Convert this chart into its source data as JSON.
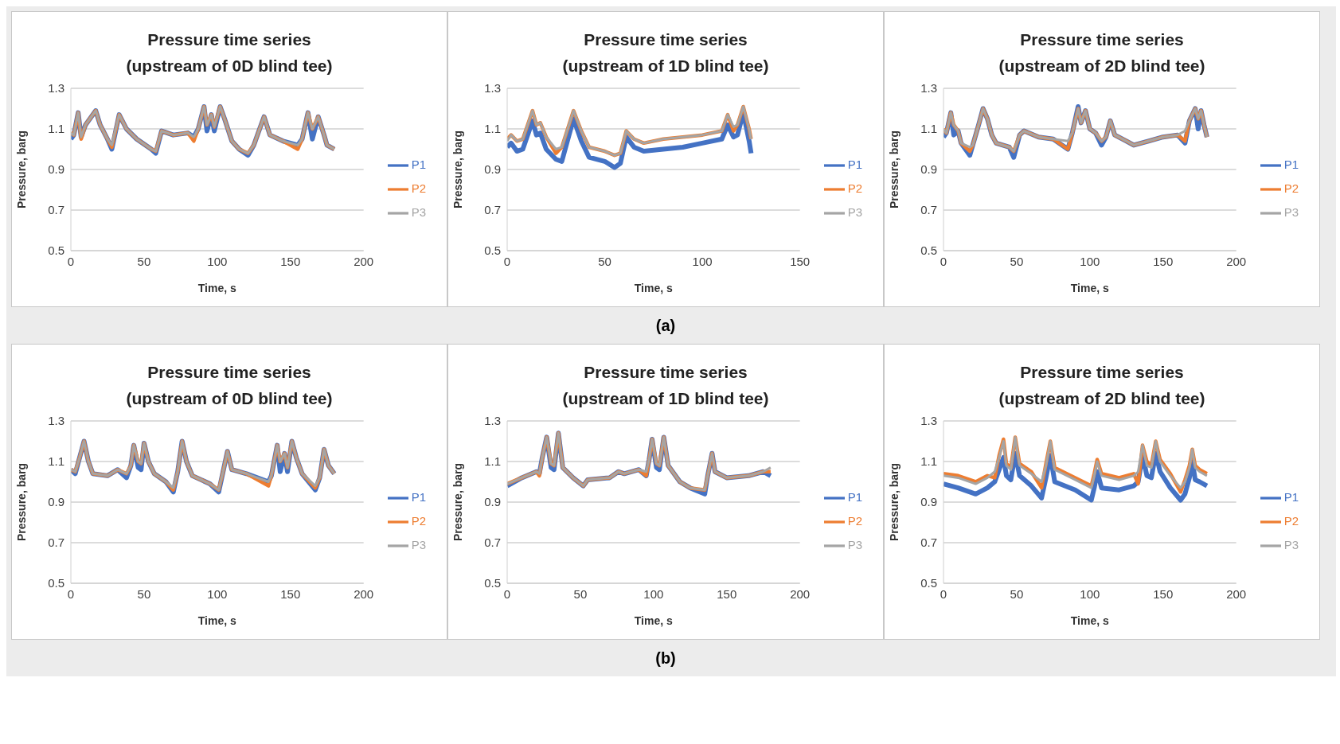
{
  "chart_data": [
    {
      "type": "line",
      "title": "Pressure time series",
      "subtitle": "(upstream of 0D blind tee)",
      "xlabel": "Time, s",
      "ylabel": "Pressure, barg",
      "xlim": [
        0,
        200
      ],
      "xticks": [
        0,
        50,
        100,
        150,
        200
      ],
      "ylim": [
        0.5,
        1.3
      ],
      "yticks": [
        0.5,
        0.7,
        0.9,
        1.1,
        1.3
      ],
      "grid": "y",
      "legend": "right",
      "x": [
        0,
        2,
        5,
        7,
        10,
        17,
        20,
        25,
        28,
        33,
        38,
        45,
        55,
        58,
        62,
        70,
        80,
        84,
        87,
        91,
        93,
        96,
        98,
        102,
        105,
        110,
        115,
        121,
        125,
        128,
        132,
        136,
        145,
        155,
        158,
        162,
        165,
        169,
        173,
        175,
        180
      ],
      "series": [
        {
          "name": "P1",
          "color": "#4472c4",
          "values": [
            1.05,
            1.07,
            1.18,
            1.06,
            1.12,
            1.19,
            1.12,
            1.05,
            1.0,
            1.17,
            1.1,
            1.05,
            1.0,
            0.98,
            1.09,
            1.07,
            1.08,
            1.06,
            1.1,
            1.21,
            1.09,
            1.17,
            1.09,
            1.21,
            1.15,
            1.04,
            1.0,
            0.97,
            1.02,
            1.08,
            1.16,
            1.07,
            1.04,
            1.02,
            1.05,
            1.18,
            1.05,
            1.16,
            1.07,
            1.02,
            1.0
          ]
        },
        {
          "name": "P2",
          "color": "#ed7d31",
          "values": [
            1.08,
            1.07,
            1.18,
            1.05,
            1.12,
            1.19,
            1.12,
            1.05,
            1.01,
            1.17,
            1.1,
            1.05,
            1.0,
            0.99,
            1.09,
            1.07,
            1.08,
            1.04,
            1.1,
            1.21,
            1.12,
            1.17,
            1.11,
            1.21,
            1.15,
            1.04,
            1.0,
            0.98,
            1.02,
            1.08,
            1.16,
            1.07,
            1.04,
            1.0,
            1.05,
            1.18,
            1.1,
            1.16,
            1.07,
            1.02,
            1.0
          ]
        },
        {
          "name": "P3",
          "color": "#a5a5a5",
          "values": [
            1.08,
            1.07,
            1.18,
            1.06,
            1.12,
            1.19,
            1.12,
            1.05,
            1.02,
            1.17,
            1.1,
            1.05,
            1.0,
            0.99,
            1.09,
            1.07,
            1.08,
            1.06,
            1.1,
            1.21,
            1.12,
            1.17,
            1.11,
            1.21,
            1.15,
            1.04,
            1.0,
            0.98,
            1.02,
            1.08,
            1.16,
            1.07,
            1.04,
            1.02,
            1.05,
            1.18,
            1.1,
            1.16,
            1.07,
            1.02,
            1.0
          ]
        }
      ]
    },
    {
      "type": "line",
      "title": "Pressure time series",
      "subtitle": "(upstream of 1D blind tee)",
      "xlabel": "Time, s",
      "ylabel": "Pressure, barg",
      "xlim": [
        0,
        150
      ],
      "xticks": [
        0,
        50,
        100,
        150
      ],
      "ylim": [
        0.5,
        1.3
      ],
      "yticks": [
        0.5,
        0.7,
        0.9,
        1.1,
        1.3
      ],
      "grid": "y",
      "legend": "right",
      "annotations": [
        "(a)"
      ],
      "x": [
        0,
        2,
        5,
        8,
        13,
        15,
        17,
        20,
        25,
        28,
        34,
        38,
        42,
        50,
        55,
        58,
        61,
        65,
        70,
        80,
        90,
        100,
        110,
        113,
        116,
        118,
        121,
        124,
        125
      ],
      "series": [
        {
          "name": "P1",
          "color": "#4472c4",
          "values": [
            1.01,
            1.03,
            0.99,
            1.0,
            1.14,
            1.07,
            1.08,
            1.0,
            0.95,
            0.94,
            1.15,
            1.04,
            0.96,
            0.94,
            0.91,
            0.93,
            1.06,
            1.01,
            0.99,
            1.0,
            1.01,
            1.03,
            1.05,
            1.12,
            1.06,
            1.07,
            1.18,
            1.04,
            0.98
          ]
        },
        {
          "name": "P2",
          "color": "#ed7d31",
          "values": [
            1.05,
            1.07,
            1.04,
            1.05,
            1.19,
            1.12,
            1.13,
            1.06,
            0.98,
            1.01,
            1.19,
            1.09,
            1.01,
            0.99,
            0.97,
            0.98,
            1.09,
            1.05,
            1.03,
            1.05,
            1.06,
            1.07,
            1.09,
            1.17,
            1.09,
            1.12,
            1.21,
            1.1,
            1.05
          ]
        },
        {
          "name": "P3",
          "color": "#a5a5a5",
          "values": [
            1.04,
            1.07,
            1.04,
            1.05,
            1.19,
            1.12,
            1.13,
            1.06,
            1.0,
            1.01,
            1.19,
            1.09,
            1.01,
            0.99,
            0.97,
            0.98,
            1.09,
            1.05,
            1.03,
            1.05,
            1.06,
            1.07,
            1.09,
            1.17,
            1.11,
            1.12,
            1.21,
            1.1,
            1.05
          ]
        }
      ]
    },
    {
      "type": "line",
      "title": "Pressure time series",
      "subtitle": "(upstream of 2D blind tee)",
      "xlabel": "Time, s",
      "ylabel": "Pressure, barg",
      "xlim": [
        0,
        200
      ],
      "xticks": [
        0,
        50,
        100,
        150,
        200
      ],
      "ylim": [
        0.5,
        1.3
      ],
      "yticks": [
        0.5,
        0.7,
        0.9,
        1.1,
        1.3
      ],
      "grid": "y",
      "legend": "right",
      "x": [
        0,
        2,
        5,
        7,
        10,
        12,
        18,
        20,
        24,
        27,
        30,
        33,
        36,
        45,
        48,
        52,
        55,
        65,
        75,
        85,
        88,
        92,
        94,
        97,
        100,
        104,
        108,
        111,
        114,
        117,
        125,
        130,
        140,
        150,
        160,
        165,
        168,
        172,
        174,
        176,
        178,
        180
      ],
      "series": [
        {
          "name": "P1",
          "color": "#4472c4",
          "values": [
            1.06,
            1.08,
            1.18,
            1.07,
            1.09,
            1.03,
            0.97,
            1.02,
            1.12,
            1.2,
            1.15,
            1.07,
            1.03,
            1.01,
            0.96,
            1.07,
            1.09,
            1.06,
            1.05,
            1.0,
            1.08,
            1.21,
            1.13,
            1.19,
            1.1,
            1.08,
            1.02,
            1.06,
            1.14,
            1.07,
            1.04,
            1.02,
            1.04,
            1.06,
            1.07,
            1.03,
            1.14,
            1.2,
            1.1,
            1.19,
            1.12,
            1.06
          ]
        },
        {
          "name": "P2",
          "color": "#ed7d31",
          "values": [
            1.1,
            1.08,
            1.18,
            1.12,
            1.09,
            1.03,
            0.99,
            1.02,
            1.12,
            1.2,
            1.15,
            1.07,
            1.03,
            1.01,
            0.99,
            1.07,
            1.09,
            1.06,
            1.05,
            1.0,
            1.08,
            1.2,
            1.13,
            1.19,
            1.1,
            1.08,
            1.04,
            1.06,
            1.14,
            1.07,
            1.04,
            1.02,
            1.04,
            1.06,
            1.07,
            1.04,
            1.14,
            1.2,
            1.15,
            1.19,
            1.12,
            1.06
          ]
        },
        {
          "name": "P3",
          "color": "#a5a5a5",
          "values": [
            1.1,
            1.08,
            1.18,
            1.12,
            1.09,
            1.03,
            1.01,
            1.02,
            1.12,
            1.2,
            1.15,
            1.07,
            1.03,
            1.01,
            0.99,
            1.07,
            1.09,
            1.06,
            1.05,
            1.04,
            1.08,
            1.2,
            1.13,
            1.19,
            1.1,
            1.08,
            1.04,
            1.06,
            1.14,
            1.07,
            1.04,
            1.02,
            1.04,
            1.06,
            1.07,
            1.09,
            1.14,
            1.2,
            1.15,
            1.19,
            1.12,
            1.06
          ]
        }
      ]
    },
    {
      "type": "line",
      "title": "Pressure time series",
      "subtitle": "(upstream of 0D blind tee)",
      "xlabel": "Time, s",
      "ylabel": "Pressure, barg",
      "xlim": [
        0,
        200
      ],
      "xticks": [
        0,
        50,
        100,
        150,
        200
      ],
      "ylim": [
        0.5,
        1.3
      ],
      "yticks": [
        0.5,
        0.7,
        0.9,
        1.1,
        1.3
      ],
      "grid": "y",
      "legend": "right",
      "x": [
        0,
        3,
        6,
        9,
        12,
        15,
        25,
        32,
        38,
        41,
        43,
        46,
        48,
        50,
        53,
        57,
        65,
        70,
        73,
        76,
        79,
        83,
        95,
        101,
        104,
        107,
        110,
        120,
        135,
        137,
        141,
        143,
        146,
        148,
        151,
        154,
        158,
        167,
        170,
        173,
        176,
        180
      ],
      "series": [
        {
          "name": "P1",
          "color": "#4472c4",
          "values": [
            1.06,
            1.04,
            1.12,
            1.2,
            1.1,
            1.04,
            1.03,
            1.06,
            1.02,
            1.08,
            1.18,
            1.07,
            1.06,
            1.19,
            1.1,
            1.04,
            1.0,
            0.95,
            1.05,
            1.2,
            1.1,
            1.03,
            0.99,
            0.95,
            1.05,
            1.15,
            1.06,
            1.04,
            1.0,
            1.03,
            1.18,
            1.05,
            1.14,
            1.05,
            1.2,
            1.12,
            1.04,
            0.96,
            1.02,
            1.16,
            1.08,
            1.04
          ]
        },
        {
          "name": "P2",
          "color": "#ed7d31",
          "values": [
            1.06,
            1.05,
            1.12,
            1.2,
            1.1,
            1.04,
            1.03,
            1.06,
            1.04,
            1.08,
            1.18,
            1.1,
            1.09,
            1.19,
            1.1,
            1.04,
            1.0,
            0.96,
            1.05,
            1.2,
            1.1,
            1.03,
            0.99,
            0.96,
            1.05,
            1.15,
            1.06,
            1.04,
            0.98,
            1.03,
            1.18,
            1.1,
            1.14,
            1.07,
            1.2,
            1.12,
            1.04,
            0.97,
            1.02,
            1.16,
            1.08,
            1.04
          ]
        },
        {
          "name": "P3",
          "color": "#a5a5a5",
          "values": [
            1.06,
            1.05,
            1.12,
            1.2,
            1.1,
            1.04,
            1.03,
            1.06,
            1.04,
            1.08,
            1.18,
            1.1,
            1.09,
            1.19,
            1.1,
            1.04,
            1.0,
            0.97,
            1.05,
            1.2,
            1.1,
            1.03,
            0.99,
            0.96,
            1.05,
            1.15,
            1.06,
            1.04,
            1.0,
            1.03,
            1.18,
            1.1,
            1.14,
            1.07,
            1.2,
            1.12,
            1.04,
            0.98,
            1.02,
            1.16,
            1.08,
            1.04
          ]
        }
      ]
    },
    {
      "type": "line",
      "title": "Pressure time series",
      "subtitle": "(upstream of 1D blind tee)",
      "xlabel": "Time, s",
      "ylabel": "Pressure, barg",
      "xlim": [
        0,
        200
      ],
      "xticks": [
        0,
        50,
        100,
        150,
        200
      ],
      "ylim": [
        0.5,
        1.3
      ],
      "yticks": [
        0.5,
        0.7,
        0.9,
        1.1,
        1.3
      ],
      "grid": "y",
      "legend": "right",
      "annotations": [
        "(b)"
      ],
      "x": [
        0,
        10,
        20,
        22,
        24,
        27,
        30,
        32,
        35,
        38,
        45,
        52,
        55,
        70,
        76,
        80,
        90,
        95,
        97,
        99,
        102,
        104,
        107,
        110,
        118,
        125,
        135,
        137,
        140,
        142,
        150,
        165,
        175,
        180
      ],
      "series": [
        {
          "name": "P1",
          "color": "#4472c4",
          "values": [
            0.98,
            1.02,
            1.05,
            1.04,
            1.12,
            1.22,
            1.07,
            1.06,
            1.24,
            1.07,
            1.02,
            0.98,
            1.01,
            1.02,
            1.05,
            1.04,
            1.06,
            1.03,
            1.11,
            1.21,
            1.07,
            1.06,
            1.22,
            1.08,
            1.0,
            0.97,
            0.94,
            1.03,
            1.14,
            1.05,
            1.02,
            1.03,
            1.05,
            1.03
          ]
        },
        {
          "name": "P2",
          "color": "#ed7d31",
          "values": [
            0.99,
            1.02,
            1.05,
            1.03,
            1.12,
            1.22,
            1.09,
            1.08,
            1.24,
            1.07,
            1.02,
            0.98,
            1.01,
            1.02,
            1.05,
            1.04,
            1.06,
            1.03,
            1.11,
            1.21,
            1.09,
            1.08,
            1.22,
            1.08,
            1.0,
            0.97,
            0.96,
            1.03,
            1.14,
            1.05,
            1.02,
            1.03,
            1.05,
            1.05
          ]
        },
        {
          "name": "P3",
          "color": "#a5a5a5",
          "values": [
            0.99,
            1.02,
            1.05,
            1.04,
            1.12,
            1.22,
            1.09,
            1.08,
            1.24,
            1.07,
            1.02,
            0.98,
            1.01,
            1.02,
            1.05,
            1.04,
            1.06,
            1.05,
            1.11,
            1.21,
            1.09,
            1.08,
            1.22,
            1.08,
            1.0,
            0.97,
            0.96,
            1.03,
            1.14,
            1.05,
            1.02,
            1.03,
            1.05,
            1.07
          ]
        }
      ]
    },
    {
      "type": "line",
      "title": "Pressure time series",
      "subtitle": "(upstream of 2D blind tee)",
      "xlabel": "Time, s",
      "ylabel": "Pressure, barg",
      "xlim": [
        0,
        200
      ],
      "xticks": [
        0,
        50,
        100,
        150,
        200
      ],
      "ylim": [
        0.5,
        1.3
      ],
      "yticks": [
        0.5,
        0.7,
        0.9,
        1.1,
        1.3
      ],
      "grid": "y",
      "legend": "right",
      "x": [
        0,
        10,
        22,
        30,
        35,
        38,
        41,
        43,
        46,
        49,
        52,
        60,
        67,
        70,
        73,
        76,
        90,
        101,
        103,
        105,
        108,
        120,
        130,
        133,
        136,
        139,
        142,
        145,
        148,
        155,
        162,
        165,
        168,
        170,
        172,
        175,
        180
      ],
      "series": [
        {
          "name": "P1",
          "color": "#4472c4",
          "values": [
            0.99,
            0.97,
            0.94,
            0.97,
            1.0,
            1.06,
            1.12,
            1.03,
            1.01,
            1.14,
            1.03,
            0.98,
            0.92,
            1.02,
            1.13,
            1.0,
            0.96,
            0.91,
            0.97,
            1.05,
            0.97,
            0.96,
            0.98,
            1.0,
            1.13,
            1.03,
            1.02,
            1.14,
            1.05,
            0.97,
            0.91,
            0.94,
            1.02,
            1.1,
            1.01,
            1.0,
            0.98
          ]
        },
        {
          "name": "P2",
          "color": "#ed7d31",
          "values": [
            1.04,
            1.03,
            1.0,
            1.03,
            1.02,
            1.13,
            1.21,
            1.09,
            1.07,
            1.22,
            1.09,
            1.05,
            0.97,
            1.09,
            1.2,
            1.07,
            1.02,
            0.98,
            1.04,
            1.11,
            1.04,
            1.02,
            1.04,
            0.99,
            1.18,
            1.1,
            1.08,
            1.2,
            1.11,
            1.04,
            0.95,
            1.01,
            1.08,
            1.16,
            1.08,
            1.06,
            1.04
          ]
        },
        {
          "name": "P3",
          "color": "#a5a5a5",
          "values": [
            1.03,
            1.02,
            0.99,
            1.02,
            1.05,
            1.12,
            1.2,
            1.08,
            1.06,
            1.22,
            1.08,
            1.04,
            1.0,
            1.08,
            1.2,
            1.06,
            1.01,
            0.97,
            1.03,
            1.1,
            1.03,
            1.01,
            1.03,
            1.05,
            1.18,
            1.08,
            1.07,
            1.2,
            1.1,
            1.03,
            0.97,
            1.0,
            1.07,
            1.16,
            1.07,
            1.05,
            1.03
          ]
        }
      ]
    }
  ]
}
